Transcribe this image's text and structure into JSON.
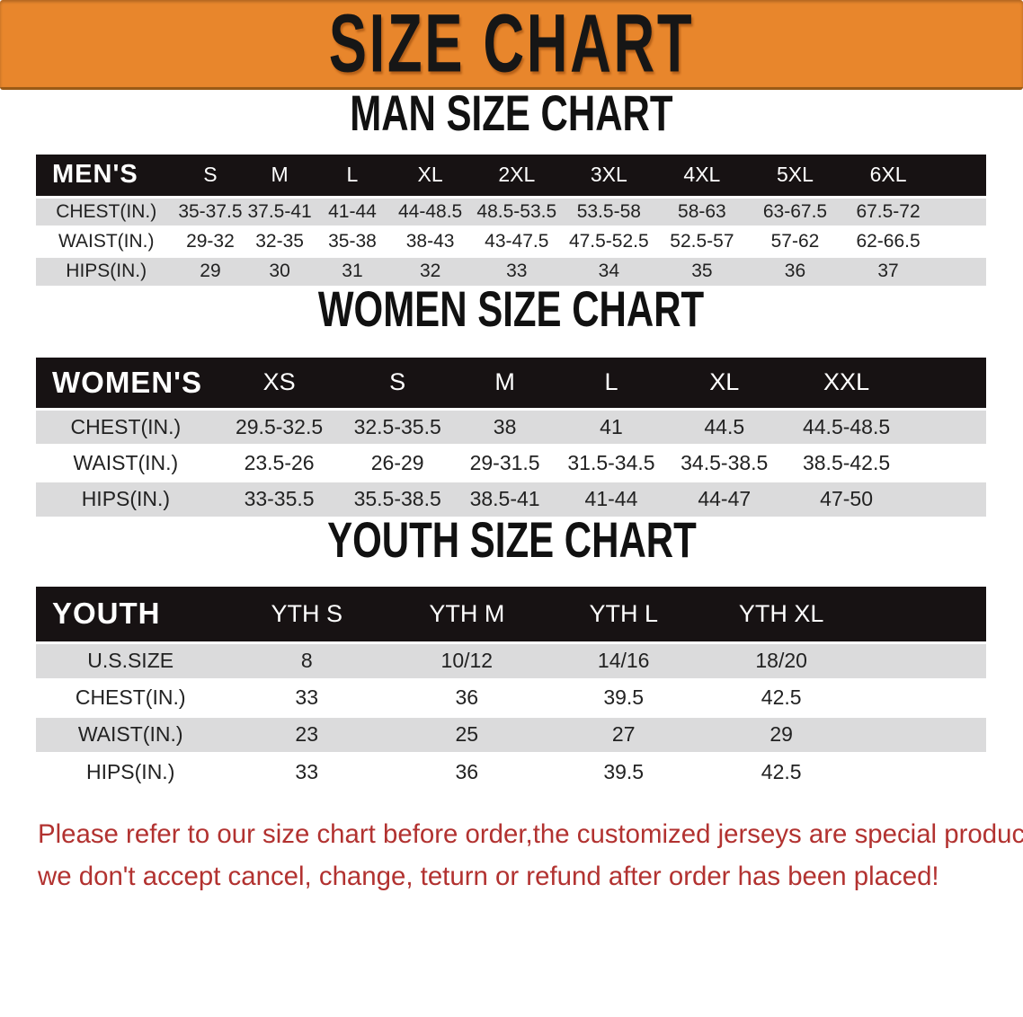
{
  "banner": {
    "title": "SIZE CHART"
  },
  "sections": [
    {
      "title": "MAN SIZE CHART",
      "header_label": "MEN'S",
      "columns": [
        "S",
        "M",
        "L",
        "XL",
        "2XL",
        "3XL",
        "4XL",
        "5XL",
        "6XL"
      ],
      "rows": [
        {
          "label": "CHEST(IN.)",
          "values": [
            "35-37.5",
            "37.5-41",
            "41-44",
            "44-48.5",
            "48.5-53.5",
            "53.5-58",
            "58-63",
            "63-67.5",
            "67.5-72"
          ]
        },
        {
          "label": "WAIST(IN.)",
          "values": [
            "29-32",
            "32-35",
            "35-38",
            "38-43",
            "43-47.5",
            "47.5-52.5",
            "52.5-57",
            "57-62",
            "62-66.5"
          ]
        },
        {
          "label": "HIPS(IN.)",
          "values": [
            "29",
            "30",
            "31",
            "32",
            "33",
            "34",
            "35",
            "36",
            "37"
          ]
        }
      ]
    },
    {
      "title": "WOMEN SIZE CHART",
      "header_label": "WOMEN'S",
      "columns": [
        "XS",
        "S",
        "M",
        "L",
        "XL",
        "XXL"
      ],
      "rows": [
        {
          "label": "CHEST(IN.)",
          "values": [
            "29.5-32.5",
            "32.5-35.5",
            "38",
            "41",
            "44.5",
            "44.5-48.5"
          ]
        },
        {
          "label": "WAIST(IN.)",
          "values": [
            "23.5-26",
            "26-29",
            "29-31.5",
            "31.5-34.5",
            "34.5-38.5",
            "38.5-42.5"
          ]
        },
        {
          "label": "HIPS(IN.)",
          "values": [
            "33-35.5",
            "35.5-38.5",
            "38.5-41",
            "41-44",
            "44-47",
            "47-50"
          ]
        }
      ]
    },
    {
      "title": "YOUTH SIZE CHART",
      "header_label": "YOUTH",
      "columns": [
        "YTH S",
        "YTH M",
        "YTH L",
        "YTH XL"
      ],
      "rows": [
        {
          "label": "U.S.SIZE",
          "values": [
            "8",
            "10/12",
            "14/16",
            "18/20"
          ]
        },
        {
          "label": "CHEST(IN.)",
          "values": [
            "33",
            "36",
            "39.5",
            "42.5"
          ]
        },
        {
          "label": "WAIST(IN.)",
          "values": [
            "23",
            "25",
            "27",
            "29"
          ]
        },
        {
          "label": "HIPS(IN.)",
          "values": [
            "33",
            "36",
            "39.5",
            "42.5"
          ]
        }
      ]
    }
  ],
  "footer": {
    "line1": "Please refer to our size chart before order,the customized jerseys are special products,",
    "line2": "we don't accept cancel, change, teturn or refund after order has been placed!"
  },
  "colors": {
    "banner_bg": "#E8862C",
    "banner_text": "#161616",
    "table_header_bg": "#171213",
    "table_header_text": "#FFFFFF",
    "row_gray": "#DBDBDC",
    "row_white": "#FFFFFF",
    "cell_text": "#222222",
    "footer_red": "#B23230"
  }
}
